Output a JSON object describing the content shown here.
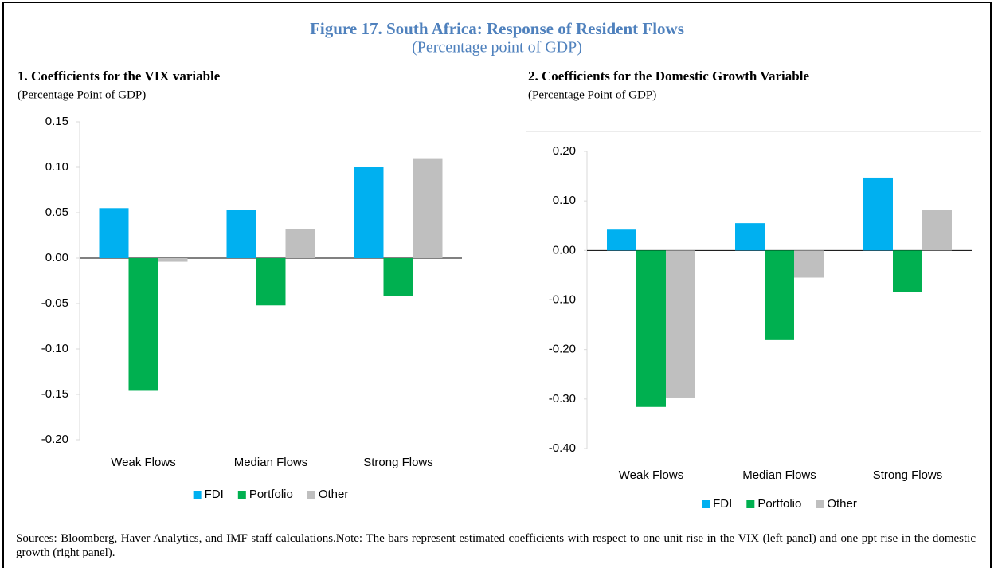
{
  "title": "Figure 17. South Africa: Response of Resident Flows",
  "subtitle": "(Percentage point of GDP)",
  "chart_data": [
    {
      "type": "bar",
      "title": "1. Coefficients for the VIX variable",
      "subtitle": "(Percentage Point of GDP)",
      "categories": [
        "Weak Flows",
        "Median Flows",
        "Strong Flows"
      ],
      "series": [
        {
          "name": "FDI",
          "color": "#00b0f0",
          "values": [
            0.055,
            0.053,
            0.1
          ]
        },
        {
          "name": "Portfolio",
          "color": "#00b050",
          "values": [
            -0.146,
            -0.052,
            -0.042
          ]
        },
        {
          "name": "Other",
          "color": "#bfbfbf",
          "values": [
            -0.004,
            0.032,
            0.11
          ]
        }
      ],
      "ylim": [
        -0.2,
        0.15
      ],
      "yticks": [
        {
          "value": -0.2,
          "label": "-0.20"
        },
        -0.15,
        {
          "value": -0.1,
          "label": "-0.10"
        },
        -0.05,
        {
          "value": 0,
          "label": "0.00"
        },
        0.05,
        {
          "value": 0.1,
          "label": "0.10"
        },
        0.15
      ],
      "legend": "bottom"
    },
    {
      "type": "bar",
      "title": "2. Coefficients for the Domestic Growth Variable",
      "subtitle": "(Percentage Point of GDP)",
      "categories": [
        "Weak Flows",
        "Median Flows",
        "Strong Flows"
      ],
      "series": [
        {
          "name": "FDI",
          "color": "#00b0f0",
          "values": [
            0.042,
            0.055,
            0.147
          ]
        },
        {
          "name": "Portfolio",
          "color": "#00b050",
          "values": [
            -0.316,
            -0.181,
            -0.084
          ]
        },
        {
          "name": "Other",
          "color": "#bfbfbf",
          "values": [
            -0.297,
            -0.055,
            0.081
          ]
        }
      ],
      "ylim": [
        -0.4,
        0.2
      ],
      "yticks": [
        {
          "value": -0.4,
          "label": "-0.40"
        },
        {
          "value": -0.3,
          "label": "-0.30"
        },
        {
          "value": -0.2,
          "label": "-0.20"
        },
        {
          "value": -0.1,
          "label": "-0.10"
        },
        {
          "value": 0,
          "label": "0.00"
        },
        {
          "value": 0.1,
          "label": "0.10"
        },
        {
          "value": 0.2,
          "label": "0.20"
        }
      ],
      "legend": "bottom"
    }
  ],
  "note": "Sources: Bloomberg, Haver Analytics, and IMF staff calculations.Note: The bars represent estimated coefficients with respect to one unit rise in the VIX (left panel) and one ppt rise in the domestic growth (right panel)."
}
